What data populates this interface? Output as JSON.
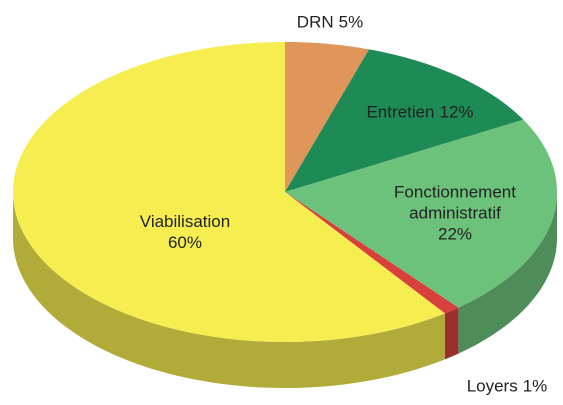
{
  "chart_data": {
    "type": "pie",
    "categories": [
      "DRN",
      "Entretien",
      "Fonctionnement administratif",
      "Loyers",
      "Viabilisation"
    ],
    "values": [
      5,
      12,
      22,
      1,
      60
    ],
    "value_labels": [
      "5%",
      "12%",
      "22%",
      "1%",
      "60%"
    ],
    "colors": [
      "#e0955a",
      "#1e8a56",
      "#6dc27b",
      "#d8403e",
      "#f6ee50"
    ]
  }
}
